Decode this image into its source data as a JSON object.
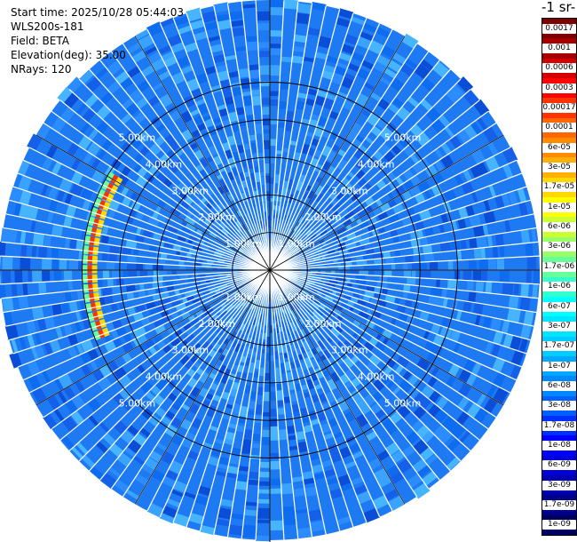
{
  "header": {
    "start_time": "Start time: 2025/10/28 05:44:03",
    "instrument": "WLS200s-181",
    "field": "Field: BETA",
    "elevation": "Elevation(deg): 35.00",
    "nrays": "NRays: 120"
  },
  "colorbar": {
    "title": "-1 sr-",
    "labels": [
      "0.0017",
      "0.001",
      "0.0006",
      "0.0003",
      "0.00017",
      "0.0001",
      "6e-05",
      "3e-05",
      "1.7e-05",
      "1e-05",
      "6e-06",
      "3e-06",
      "1.7e-06",
      "1e-06",
      "6e-07",
      "3e-07",
      "1.7e-07",
      "1e-07",
      "6e-08",
      "3e-08",
      "1.7e-08",
      "1e-08",
      "6e-09",
      "3e-09",
      "1.7e-09",
      "1e-09"
    ],
    "colors": [
      "#7f0000",
      "#a80000",
      "#d40000",
      "#ff0000",
      "#ff3300",
      "#ff6600",
      "#ff8c00",
      "#ffb000",
      "#ffd800",
      "#ffff00",
      "#ccff33",
      "#99ff66",
      "#66ff99",
      "#33ffcc",
      "#00ffff",
      "#00e5ff",
      "#00ccff",
      "#00a8ff",
      "#0088ff",
      "#0060ff",
      "#0030ff",
      "#0000ff",
      "#0000d8",
      "#0000b0",
      "#000088",
      "#000060"
    ]
  },
  "chart_data": {
    "type": "heatmap",
    "projection": "polar (PPI scan)",
    "field": "BETA",
    "elevation_deg": 35.0,
    "n_rays": 120,
    "range_rings_km": [
      1.0,
      2.0,
      3.0,
      4.0,
      5.0
    ],
    "ring_labels": [
      "1.00km",
      "2.00km",
      "3.00km",
      "4.00km",
      "5.00km"
    ],
    "max_range_km": 6.0,
    "colorbar_scale": "log",
    "value_range": [
      1e-09,
      0.0017
    ],
    "background_beta": 6e-08,
    "features": [
      {
        "description_label": "",
        "azimuth_deg_range": [
          248,
          300
        ],
        "range_km": [
          4.6,
          5.0
        ],
        "beta_peak": 1e-05
      }
    ]
  }
}
